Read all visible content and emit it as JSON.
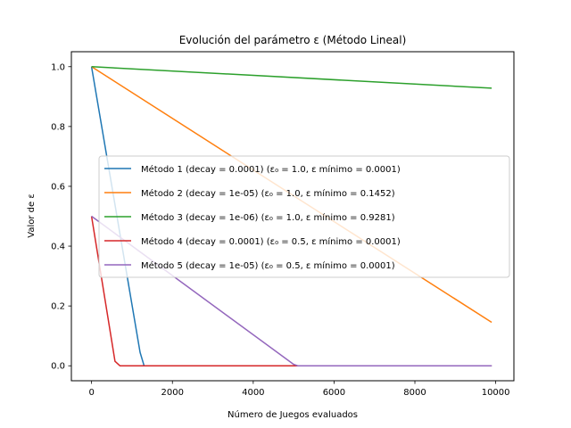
{
  "chart_data": {
    "type": "line",
    "title": "Evolución del parámetro ε (Método Lineal)",
    "xlabel": "Número de Juegos evaluados",
    "ylabel": "Valor de ε",
    "xlim": [
      -500,
      10450
    ],
    "ylim": [
      -0.05,
      1.05
    ],
    "xticks": [
      0,
      2000,
      4000,
      6000,
      8000,
      10000
    ],
    "yticks": [
      0.0,
      0.2,
      0.4,
      0.6,
      0.8,
      1.0
    ],
    "xtick_labels": [
      "0",
      "2000",
      "4000",
      "6000",
      "8000",
      "10000"
    ],
    "ytick_labels": [
      "0.0",
      "0.2",
      "0.4",
      "0.6",
      "0.8",
      "1.0"
    ],
    "grid": false,
    "legend_position": "center-right",
    "series": [
      {
        "name": "Método 1 (decay = 0.0001) (ε₀ = 1.0, ε mínimo = 0.0001)",
        "color": "#1f77b4",
        "x": [
          0,
          1200,
          1300,
          9900
        ],
        "y": [
          1.0,
          0.045,
          0.0001,
          0.0001
        ]
      },
      {
        "name": "Método 2 (decay = 1e-05) (ε₀ = 1.0, ε mínimo = 0.1452)",
        "color": "#ff7f0e",
        "x": [
          0,
          9900
        ],
        "y": [
          1.0,
          0.1452
        ]
      },
      {
        "name": "Método 3 (decay = 1e-06) (ε₀ = 1.0, ε mínimo = 0.9281)",
        "color": "#2ca02c",
        "x": [
          0,
          9900
        ],
        "y": [
          1.0,
          0.9281
        ]
      },
      {
        "name": "Método 4 (decay = 0.0001) (ε₀ = 0.5, ε mínimo = 0.0001)",
        "color": "#d62728",
        "x": [
          0,
          580,
          700,
          9900
        ],
        "y": [
          0.5,
          0.015,
          0.0001,
          0.0001
        ]
      },
      {
        "name": "Método 5 (decay = 1e-05) (ε₀ = 0.5, ε mínimo = 0.0001)",
        "color": "#9467bd",
        "x": [
          0,
          5000,
          5100,
          9900
        ],
        "y": [
          0.5,
          0.005,
          0.0001,
          0.0001
        ]
      }
    ]
  }
}
